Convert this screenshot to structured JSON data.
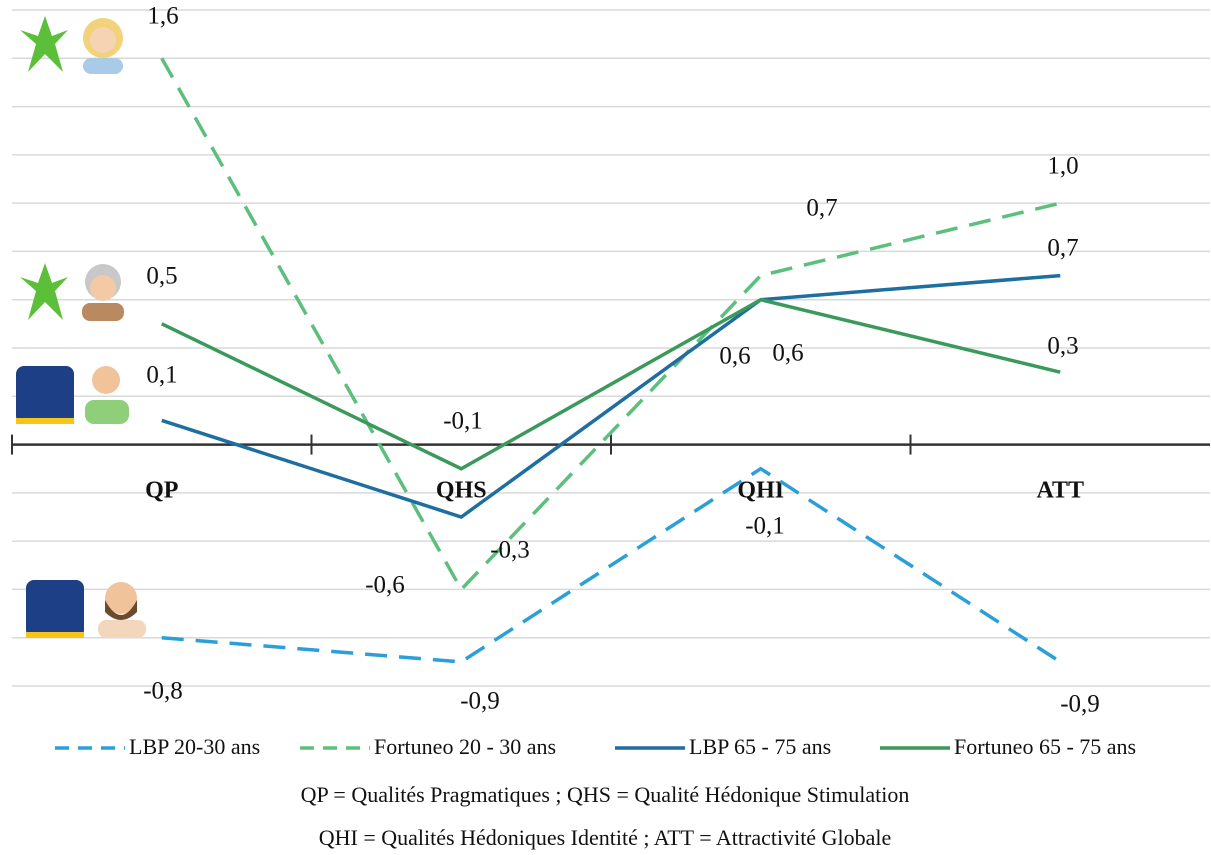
{
  "chart_data": {
    "type": "line",
    "categories": [
      "QP",
      "QHS",
      "QHI",
      "ATT"
    ],
    "ylim": [
      -1.0,
      1.8
    ],
    "grid": true,
    "legend": "bottom",
    "series": [
      {
        "name": "LBP 20-30 ans",
        "color": "#2b9fd8",
        "dash": "dashed",
        "values": [
          -0.8,
          -0.9,
          -0.1,
          -0.9
        ],
        "value_labels": [
          "-0,8",
          "-0,9",
          "-0,1",
          "-0,9"
        ]
      },
      {
        "name": "Fortuneo 20 - 30 ans",
        "color": "#5cbf7c",
        "dash": "dashed",
        "values": [
          1.6,
          -0.6,
          0.7,
          1.0
        ],
        "value_labels": [
          "1,6",
          "-0,6",
          "0,7",
          "1,0"
        ]
      },
      {
        "name": "LBP  65 - 75 ans",
        "color": "#1e6e9f",
        "dash": "solid",
        "values": [
          0.1,
          -0.3,
          0.6,
          0.7
        ],
        "value_labels": [
          "0,1",
          "-0,3",
          "0,6",
          "0,7"
        ]
      },
      {
        "name": "Fortuneo 65 - 75 ans",
        "color": "#3b9a5b",
        "dash": "solid",
        "values": [
          0.5,
          -0.1,
          0.6,
          0.3
        ],
        "value_labels": [
          "0,5",
          "-0,1",
          "0,6",
          "0,3"
        ]
      }
    ],
    "notes": [
      "QP = Qualités Pragmatiques ; QHS = Qualité Hédonique Stimulation",
      "QHI = Qualités Hédoniques Identité  ; ATT = Attractivité Globale"
    ]
  }
}
